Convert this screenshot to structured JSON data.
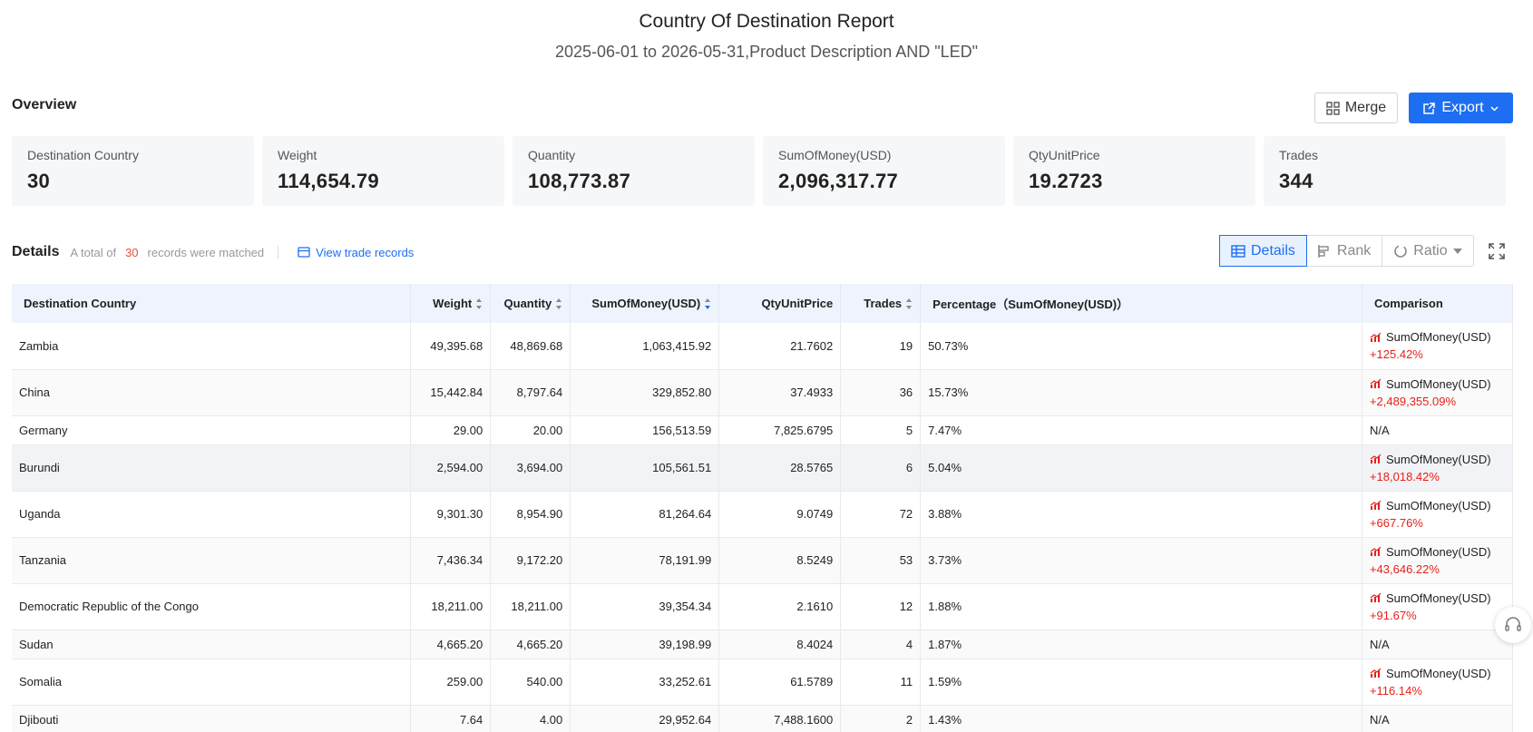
{
  "report": {
    "title": "Country Of Destination Report",
    "subtitle": "2025-06-01 to 2026-05-31,Product Description AND \"LED\""
  },
  "overview": {
    "label": "Overview",
    "merge_label": "Merge",
    "export_label": "Export",
    "cards": [
      {
        "label": "Destination Country",
        "value": "30"
      },
      {
        "label": "Weight",
        "value": "114,654.79"
      },
      {
        "label": "Quantity",
        "value": "108,773.87"
      },
      {
        "label": "SumOfMoney(USD)",
        "value": "2,096,317.77"
      },
      {
        "label": "QtyUnitPrice",
        "value": "19.2723"
      },
      {
        "label": "Trades",
        "value": "344"
      }
    ]
  },
  "details": {
    "title": "Details",
    "count_prefix": "A total of",
    "count": "30",
    "count_suffix": "records were matched",
    "view_link": "View trade records",
    "tabs": {
      "details": "Details",
      "rank": "Rank",
      "ratio": "Ratio"
    }
  },
  "table": {
    "headers": {
      "country": "Destination Country",
      "weight": "Weight",
      "quantity": "Quantity",
      "sum": "SumOfMoney(USD)",
      "unit": "QtyUnitPrice",
      "trades": "Trades",
      "percentage": "Percentage（SumOfMoney(USD)）",
      "comparison": "Comparison"
    },
    "comparison_metric": "SumOfMoney(USD)",
    "rows": [
      {
        "country": "Zambia",
        "weight": "49,395.68",
        "quantity": "48,869.68",
        "sum": "1,063,415.92",
        "unit": "21.7602",
        "trades": "19",
        "pct": "50.73%",
        "cmp": "+125.42%"
      },
      {
        "country": "China",
        "weight": "15,442.84",
        "quantity": "8,797.64",
        "sum": "329,852.80",
        "unit": "37.4933",
        "trades": "36",
        "pct": "15.73%",
        "cmp": "+2,489,355.09%"
      },
      {
        "country": "Germany",
        "weight": "29.00",
        "quantity": "20.00",
        "sum": "156,513.59",
        "unit": "7,825.6795",
        "trades": "5",
        "pct": "7.47%",
        "cmp": "N/A"
      },
      {
        "country": "Burundi",
        "weight": "2,594.00",
        "quantity": "3,694.00",
        "sum": "105,561.51",
        "unit": "28.5765",
        "trades": "6",
        "pct": "5.04%",
        "cmp": "+18,018.42%"
      },
      {
        "country": "Uganda",
        "weight": "9,301.30",
        "quantity": "8,954.90",
        "sum": "81,264.64",
        "unit": "9.0749",
        "trades": "72",
        "pct": "3.88%",
        "cmp": "+667.76%"
      },
      {
        "country": "Tanzania",
        "weight": "7,436.34",
        "quantity": "9,172.20",
        "sum": "78,191.99",
        "unit": "8.5249",
        "trades": "53",
        "pct": "3.73%",
        "cmp": "+43,646.22%"
      },
      {
        "country": "Democratic Republic of the Congo",
        "weight": "18,211.00",
        "quantity": "18,211.00",
        "sum": "39,354.34",
        "unit": "2.1610",
        "trades": "12",
        "pct": "1.88%",
        "cmp": "+91.67%"
      },
      {
        "country": "Sudan",
        "weight": "4,665.20",
        "quantity": "4,665.20",
        "sum": "39,198.99",
        "unit": "8.4024",
        "trades": "4",
        "pct": "1.87%",
        "cmp": "N/A"
      },
      {
        "country": "Somalia",
        "weight": "259.00",
        "quantity": "540.00",
        "sum": "33,252.61",
        "unit": "61.5789",
        "trades": "11",
        "pct": "1.59%",
        "cmp": "+116.14%"
      },
      {
        "country": "Djibouti",
        "weight": "7.64",
        "quantity": "4.00",
        "sum": "29,952.64",
        "unit": "7,488.1600",
        "trades": "2",
        "pct": "1.43%",
        "cmp": "N/A"
      }
    ]
  },
  "colors": {
    "accent": "#1e6ef2",
    "negative": "#e8201a",
    "count": "#e54c3c"
  },
  "icons": [
    "merge-icon",
    "export-icon",
    "chevron-down-icon",
    "card-icon",
    "table-icon",
    "rank-icon",
    "ratio-icon",
    "fullscreen-icon",
    "trend-icon",
    "headset-icon"
  ]
}
